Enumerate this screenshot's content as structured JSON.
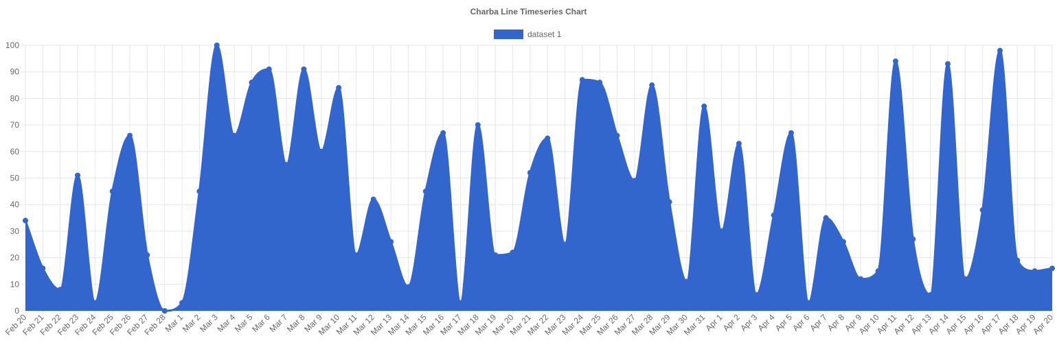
{
  "chart_data": {
    "type": "area",
    "title": "Charba Line Timeseries Chart",
    "legend": {
      "position": "top",
      "entries": [
        {
          "label": "dataset 1",
          "color": "#3366cc"
        }
      ]
    },
    "series": [
      {
        "name": "dataset 1",
        "color": "#3366cc",
        "x": [
          "Feb 20",
          "Feb 21",
          "Feb 22",
          "Feb 23",
          "Feb 24",
          "Feb 25",
          "Feb 26",
          "Feb 27",
          "Feb 28",
          "Mar 1",
          "Mar 2",
          "Mar 3",
          "Mar 4",
          "Mar 5",
          "Mar 6",
          "Mar 7",
          "Mar 8",
          "Mar 9",
          "Mar 10",
          "Mar 11",
          "Mar 12",
          "Mar 13",
          "Mar 14",
          "Mar 15",
          "Mar 16",
          "Mar 17",
          "Mar 18",
          "Mar 19",
          "Mar 20",
          "Mar 21",
          "Mar 22",
          "Mar 23",
          "Mar 24",
          "Mar 25",
          "Mar 26",
          "Mar 27",
          "Mar 28",
          "Mar 29",
          "Mar 30",
          "Mar 31",
          "Apr 1",
          "Apr 2",
          "Apr 3",
          "Apr 4",
          "Apr 5",
          "Apr 6",
          "Apr 7",
          "Apr 8",
          "Apr 9",
          "Apr 10",
          "Apr 11",
          "Apr 12",
          "Apr 13",
          "Apr 14",
          "Apr 15",
          "Apr 16",
          "Apr 17",
          "Apr 18",
          "Apr 19",
          "Apr 20"
        ],
        "values": [
          34,
          16,
          8,
          51,
          3,
          45,
          66,
          21,
          0,
          3,
          45,
          100,
          66,
          86,
          91,
          55,
          91,
          60,
          84,
          21,
          42,
          26,
          9,
          45,
          67,
          3,
          70,
          21,
          22,
          52,
          65,
          25,
          87,
          86,
          66,
          49,
          85,
          41,
          11,
          77,
          30,
          63,
          6,
          36,
          67,
          3,
          35,
          26,
          12,
          15,
          94,
          27,
          6,
          93,
          12,
          38,
          98,
          19,
          15,
          16
        ]
      }
    ],
    "xlabel": "",
    "ylabel": "",
    "ylim": [
      0,
      100
    ],
    "yticks": [
      "0",
      "10",
      "20",
      "30",
      "40",
      "50",
      "60",
      "70",
      "80",
      "90",
      "100"
    ],
    "grid": true
  }
}
